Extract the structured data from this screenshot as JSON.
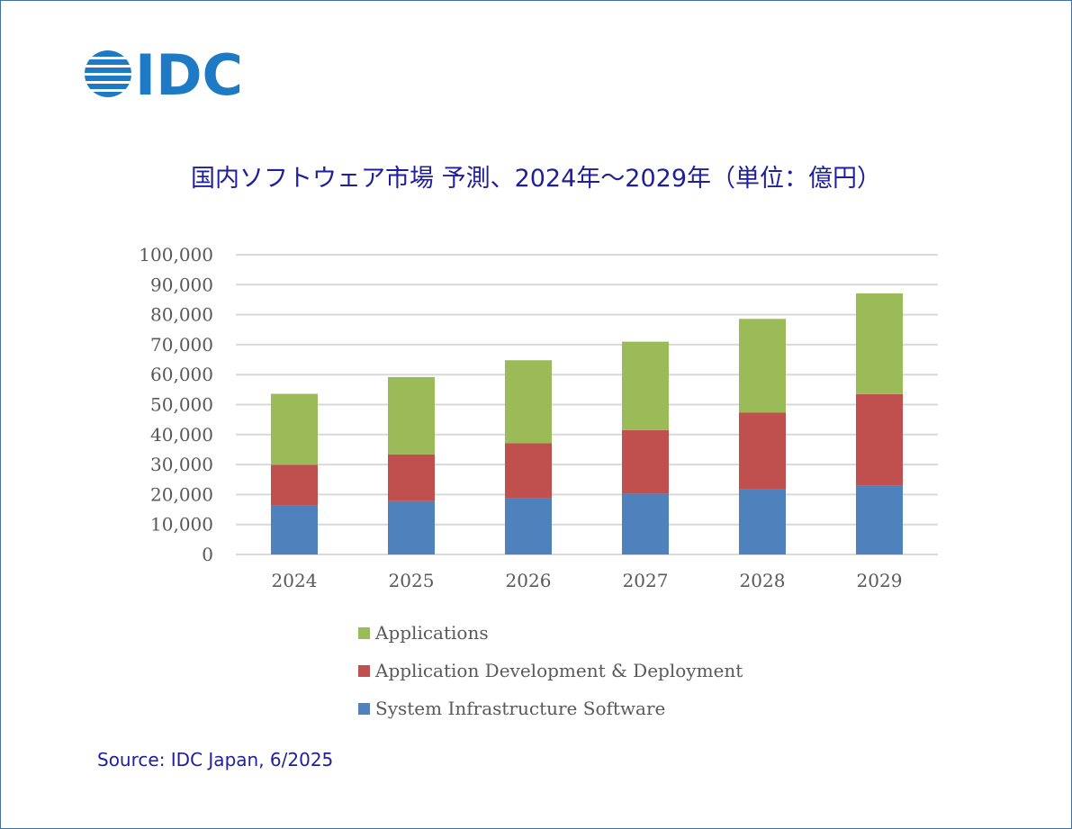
{
  "logo": {
    "text": "IDC",
    "color": "#1f7ac6"
  },
  "source": "Source: IDC Japan, 6/2025",
  "colors": {
    "gridline": "#d9d9d9",
    "tick_text": "#595959",
    "title_text": "#1f1f9a",
    "frame": "#41719c"
  },
  "chart_data": {
    "type": "bar",
    "stacked": true,
    "title": "国内ソフトウェア市場 予測、2024年～2029年（単位：億円）",
    "xlabel": "",
    "ylabel": "",
    "categories": [
      "2024",
      "2025",
      "2026",
      "2027",
      "2028",
      "2029"
    ],
    "ylim": [
      0,
      100000
    ],
    "yticks": [
      0,
      10000,
      20000,
      30000,
      40000,
      50000,
      60000,
      70000,
      80000,
      90000,
      100000
    ],
    "ytick_labels": [
      "0",
      "10,000",
      "20,000",
      "30,000",
      "40,000",
      "50,000",
      "60,000",
      "70,000",
      "80,000",
      "90,000",
      "100,000"
    ],
    "grid": true,
    "legend_position": "bottom",
    "series": [
      {
        "name": "System Infrastructure Software",
        "color": "#4f81bd",
        "values": [
          16500,
          17800,
          18900,
          20300,
          21800,
          23000
        ]
      },
      {
        "name": "Application Development & Deployment",
        "color": "#c0504d",
        "values": [
          13400,
          15600,
          18200,
          21200,
          25500,
          30500
        ]
      },
      {
        "name": "Applications",
        "color": "#9bbb59",
        "values": [
          23700,
          25800,
          27700,
          29500,
          31300,
          33600
        ]
      }
    ],
    "legend_order": [
      2,
      1,
      0
    ]
  }
}
